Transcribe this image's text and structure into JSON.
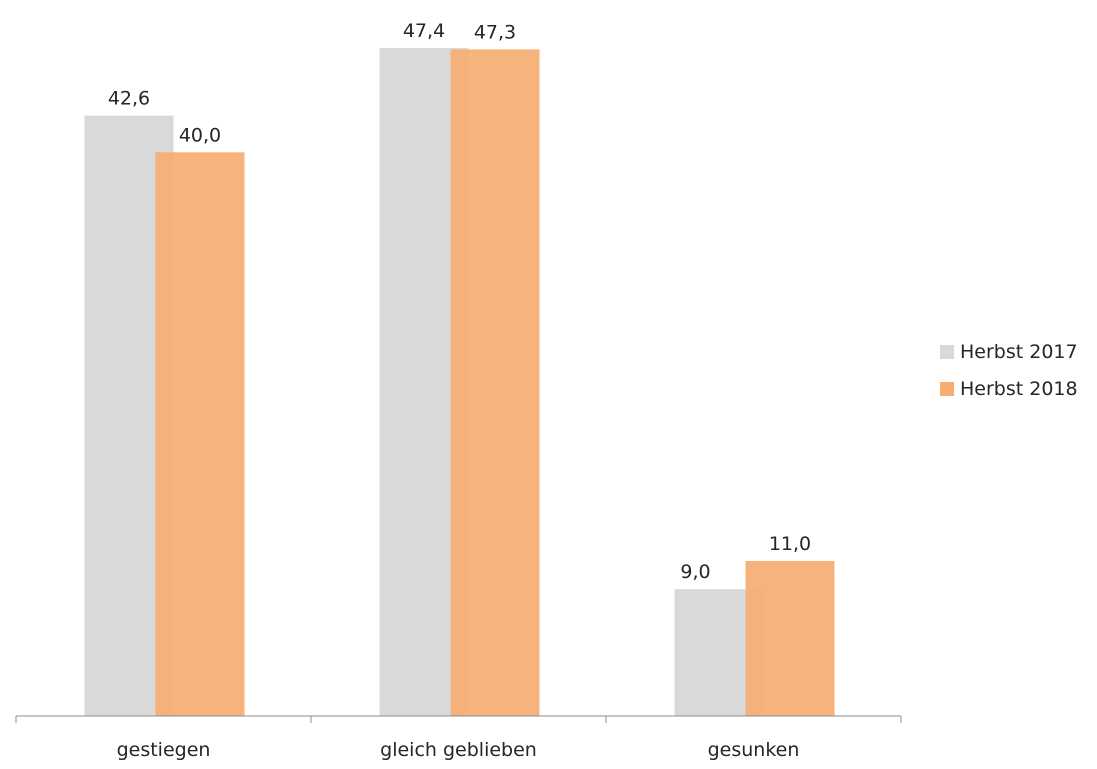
{
  "chart_data": {
    "type": "bar",
    "categories": [
      "gestiegen",
      "gleich geblieben",
      "gesunken"
    ],
    "series": [
      {
        "name": "Herbst 2017",
        "values": [
          42.6,
          47.4,
          9.0
        ],
        "labels": [
          "42,6",
          "47,4",
          "9,0"
        ],
        "color": "#d9d9d9"
      },
      {
        "name": "Herbst 2018",
        "values": [
          40.0,
          47.3,
          11.0
        ],
        "labels": [
          "40,0",
          "47,3",
          "11,0"
        ],
        "color": "#f5ad72"
      }
    ],
    "ylim": [
      0,
      47.4
    ],
    "grid": false,
    "legend_position": "right"
  }
}
